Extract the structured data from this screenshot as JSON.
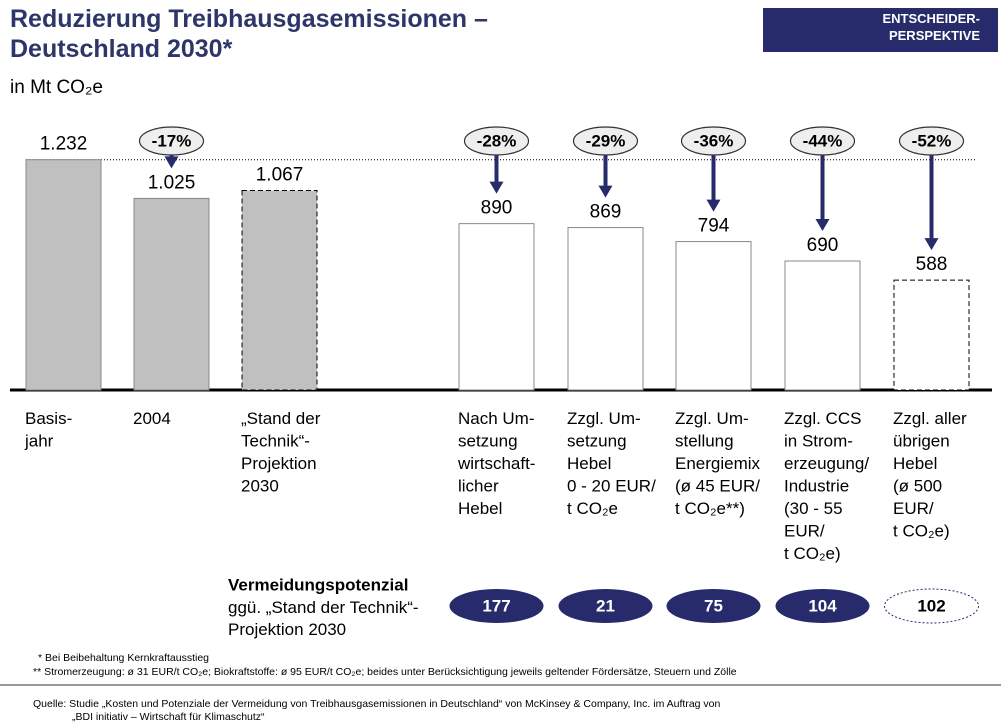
{
  "chart_data": {
    "type": "bar",
    "title": "Reduzierung Treibhausgasemissionen –\nDeutschland 2030*",
    "subtitle": "in Mt CO₂e",
    "categories": [
      "Basis-\njahr",
      "2004",
      "„Stand der\nTechnik“-\nProjektion\n2030",
      "Nach Um-\nsetzung\nwirtschaft-\nlicher\nHebel",
      "Zzgl. Um-\nsetzung\nHebel\n0 - 20 EUR/\nt CO₂e",
      "Zzgl. Um-\nstellung\nEnergiemix\n(ø 45 EUR/\nt CO₂e**)",
      "Zzgl. CCS\nin Strom-\nerzeugung/\nIndustrie\n(30 - 55\nEUR/\nt CO₂e)",
      "Zzgl. aller\nübrigen\nHebel\n(ø 500\nEUR/\nt CO₂e)"
    ],
    "values": [
      1232,
      1025,
      1067,
      890,
      869,
      794,
      690,
      588
    ],
    "value_labels": [
      "1.232",
      "1.025",
      "1.067",
      "890",
      "869",
      "794",
      "690",
      "588"
    ],
    "fills": [
      "#c0c0c0",
      "#c0c0c0",
      "#c0c0c0",
      "#ffffff",
      "#ffffff",
      "#ffffff",
      "#ffffff",
      "#ffffff"
    ],
    "dashed": [
      false,
      false,
      true,
      false,
      false,
      false,
      false,
      true
    ],
    "ylim": [
      0,
      1300
    ],
    "changes": {
      "values": [
        null,
        -17,
        null,
        -28,
        -29,
        -36,
        -44,
        -52
      ],
      "labels": [
        null,
        "-17%",
        null,
        "-28%",
        "-29%",
        "-36%",
        "-44%",
        "-52%"
      ]
    },
    "avoidance": {
      "label": "Vermeidungspotenzial",
      "sublabel": "ggü. „Stand der Technik“-\nProjektion 2030",
      "values": [
        null,
        null,
        null,
        177,
        21,
        75,
        104,
        102
      ],
      "color": "#272b6b"
    }
  },
  "badge": "ENTSCHEIDER-\nPERSPEKTIVE",
  "footnotes": [
    "* Bei Beibehaltung Kernkraftausstieg",
    "** Stromerzeugung: ø 31 EUR/t CO₂e; Biokraftstoffe: ø 95 EUR/t CO₂e; beides unter Berücksichtigung jeweils geltender Fördersätze, Steuern und Zölle"
  ],
  "source": [
    "Quelle: Studie „Kosten und Potenziale der Vermeidung von Treibhausgasemissionen in Deutschland“ von McKinsey & Company, Inc. im Auftrag von",
    "„BDI initiativ – Wirtschaft für Klimaschutz“"
  ]
}
